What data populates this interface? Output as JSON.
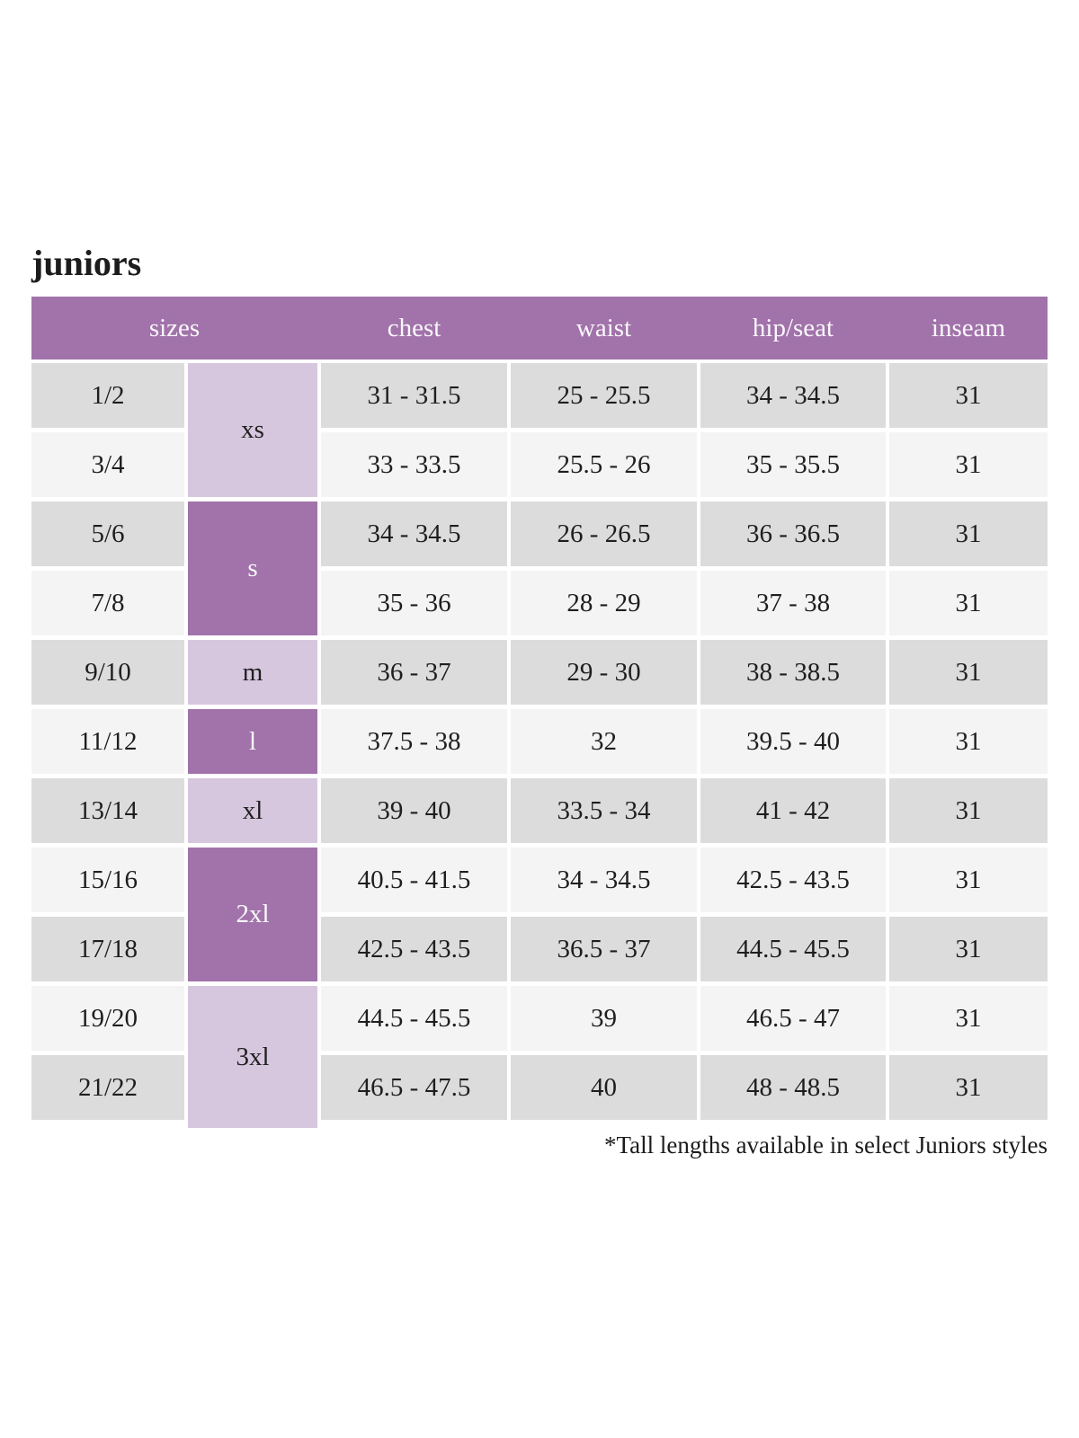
{
  "title": "juniors",
  "colors": {
    "purple": "#a173aa",
    "lavender": "#d6c7de",
    "gray-row": "#dcdcdc",
    "light-row": "#f4f4f4",
    "ink": "#1e1e1e",
    "header-ink": "#fbf7fc",
    "page-bg": "#ffffff"
  },
  "table": {
    "headers": [
      "sizes",
      "chest",
      "waist",
      "hip/seat",
      "inseam"
    ],
    "groups": [
      {
        "label": "xs",
        "rows": [
          {
            "size": "1/2",
            "chest": "31 - 31.5",
            "waist": "25 - 25.5",
            "hip": "34 - 34.5",
            "inseam": "31"
          },
          {
            "size": "3/4",
            "chest": "33 - 33.5",
            "waist": "25.5 - 26",
            "hip": "35 - 35.5",
            "inseam": "31"
          }
        ]
      },
      {
        "label": "s",
        "rows": [
          {
            "size": "5/6",
            "chest": "34 - 34.5",
            "waist": "26 - 26.5",
            "hip": "36 - 36.5",
            "inseam": "31"
          },
          {
            "size": "7/8",
            "chest": "35 - 36",
            "waist": "28 - 29",
            "hip": "37 - 38",
            "inseam": "31"
          }
        ]
      },
      {
        "label": "m",
        "rows": [
          {
            "size": "9/10",
            "chest": "36 - 37",
            "waist": "29 - 30",
            "hip": "38 - 38.5",
            "inseam": "31"
          }
        ]
      },
      {
        "label": "l",
        "rows": [
          {
            "size": "11/12",
            "chest": "37.5 - 38",
            "waist": "32",
            "hip": "39.5 - 40",
            "inseam": "31"
          }
        ]
      },
      {
        "label": "xl",
        "rows": [
          {
            "size": "13/14",
            "chest": "39 - 40",
            "waist": "33.5 - 34",
            "hip": "41 - 42",
            "inseam": "31"
          }
        ]
      },
      {
        "label": "2xl",
        "rows": [
          {
            "size": "15/16",
            "chest": "40.5 - 41.5",
            "waist": "34 - 34.5",
            "hip": "42.5 - 43.5",
            "inseam": "31"
          },
          {
            "size": "17/18",
            "chest": "42.5 - 43.5",
            "waist": "36.5 - 37",
            "hip": "44.5 - 45.5",
            "inseam": "31"
          }
        ]
      },
      {
        "label": "3xl",
        "rows": [
          {
            "size": "19/20",
            "chest": "44.5 - 45.5",
            "waist": "39",
            "hip": "46.5 - 47",
            "inseam": "31"
          },
          {
            "size": "21/22",
            "chest": "46.5 - 47.5",
            "waist": "40",
            "hip": "48 - 48.5",
            "inseam": "31"
          }
        ]
      }
    ],
    "footnote": "*Tall lengths available in select Juniors styles"
  }
}
